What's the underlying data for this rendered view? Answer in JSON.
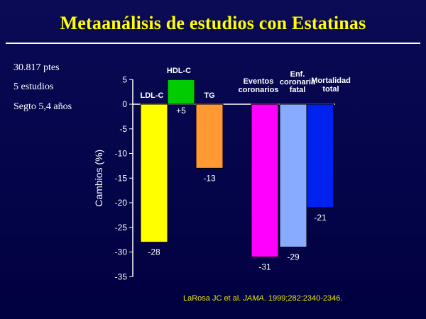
{
  "title": "Metaanálisis de estudios con Estatinas",
  "info_lines": [
    "30.817 ptes",
    "5 estudios",
    "Segto 5,4 años"
  ],
  "citation": {
    "authors": "LaRosa JC et al. ",
    "journal": "JAMA",
    "details": ". 1999;282:2340-2346."
  },
  "colors": {
    "title": "#ffff00",
    "background": "#000048",
    "citation": "#e8e800"
  },
  "chart_data": {
    "type": "bar",
    "ylabel": "Cambios (%)",
    "ylim": [
      -35,
      5
    ],
    "yticks": [
      5,
      0,
      -5,
      -10,
      -15,
      -20,
      -25,
      -30,
      -35
    ],
    "categories": [
      [
        "LDL-C"
      ],
      [
        "HDL-C"
      ],
      [
        "TG"
      ],
      [
        "Eventos",
        "coronarios"
      ],
      [
        "Enf.",
        "coronaria",
        "fatal"
      ],
      [
        "Mortalidad",
        "total"
      ]
    ],
    "values": [
      -28,
      5,
      -13,
      -31,
      -29,
      -21
    ],
    "value_labels": [
      "-28",
      "+5",
      "-13",
      "-31",
      "-29",
      "-21"
    ],
    "bar_colors": [
      "#ffff00",
      "#00cc00",
      "#ff9933",
      "#ff00ff",
      "#88aaff",
      "#0022ee"
    ],
    "grid": false
  }
}
